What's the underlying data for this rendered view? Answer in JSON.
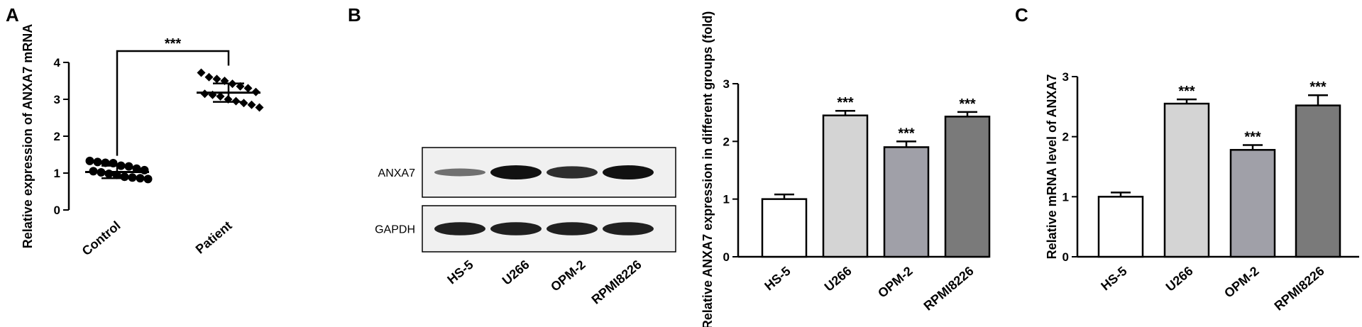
{
  "panels": {
    "a": {
      "letter": "A"
    },
    "b": {
      "letter": "B"
    },
    "c": {
      "letter": "C"
    }
  },
  "chart_data": [
    {
      "id": "A",
      "type": "scatter",
      "ylabel": "Relative expression of ANXA7 mRNA",
      "ylim": [
        0,
        4
      ],
      "yticks": [
        0,
        1,
        2,
        3,
        4
      ],
      "categories": [
        "Control",
        "Patient"
      ],
      "series": [
        {
          "values": [
            1.33,
            1.3,
            1.28,
            1.27,
            1.2,
            1.18,
            1.12,
            1.08,
            1.05,
            1.02,
            0.98,
            0.95,
            0.9,
            0.88,
            0.86,
            0.84
          ]
        },
        {
          "values": [
            3.72,
            3.6,
            3.55,
            3.5,
            3.42,
            3.35,
            3.3,
            3.2,
            3.15,
            3.12,
            3.08,
            3.0,
            2.95,
            2.9,
            2.85,
            2.78
          ]
        }
      ],
      "mean": [
        1.03,
        3.18
      ],
      "sd": [
        0.17,
        0.25
      ],
      "significance": "***"
    },
    {
      "id": "B-blot",
      "type": "table",
      "rows": [
        "ANXA7",
        "GAPDH"
      ],
      "lanes": [
        "HS-5",
        "U266",
        "OPM-2",
        "RPMI8226"
      ],
      "band_intensity": {
        "ANXA7": [
          0.35,
          1.0,
          0.8,
          1.0
        ],
        "GAPDH": [
          0.9,
          0.9,
          0.9,
          0.9
        ]
      }
    },
    {
      "id": "B",
      "type": "bar",
      "ylabel": "Relative ANXA7 expression in different groups (fold)",
      "ylim": [
        0,
        3
      ],
      "yticks": [
        0,
        1,
        2,
        3
      ],
      "categories": [
        "HS-5",
        "U266",
        "OPM-2",
        "RPMI8226"
      ],
      "values": [
        1.0,
        2.45,
        1.9,
        2.43
      ],
      "errors": [
        0.08,
        0.08,
        0.1,
        0.08
      ],
      "significance": [
        "",
        "***",
        "***",
        "***"
      ],
      "colors": [
        "#ffffff",
        "#d4d4d4",
        "#a0a0a8",
        "#7a7a7a"
      ]
    },
    {
      "id": "C",
      "type": "bar",
      "ylabel": "Relative mRNA level of ANXA7",
      "ylim": [
        0,
        3
      ],
      "yticks": [
        0,
        1,
        2,
        3
      ],
      "categories": [
        "HS-5",
        "U266",
        "OPM-2",
        "RPMI8226"
      ],
      "values": [
        1.0,
        2.55,
        1.78,
        2.52
      ],
      "errors": [
        0.07,
        0.07,
        0.08,
        0.17
      ],
      "significance": [
        "",
        "***",
        "***",
        "***"
      ],
      "colors": [
        "#ffffff",
        "#d4d4d4",
        "#a0a0a8",
        "#7a7a7a"
      ]
    }
  ]
}
